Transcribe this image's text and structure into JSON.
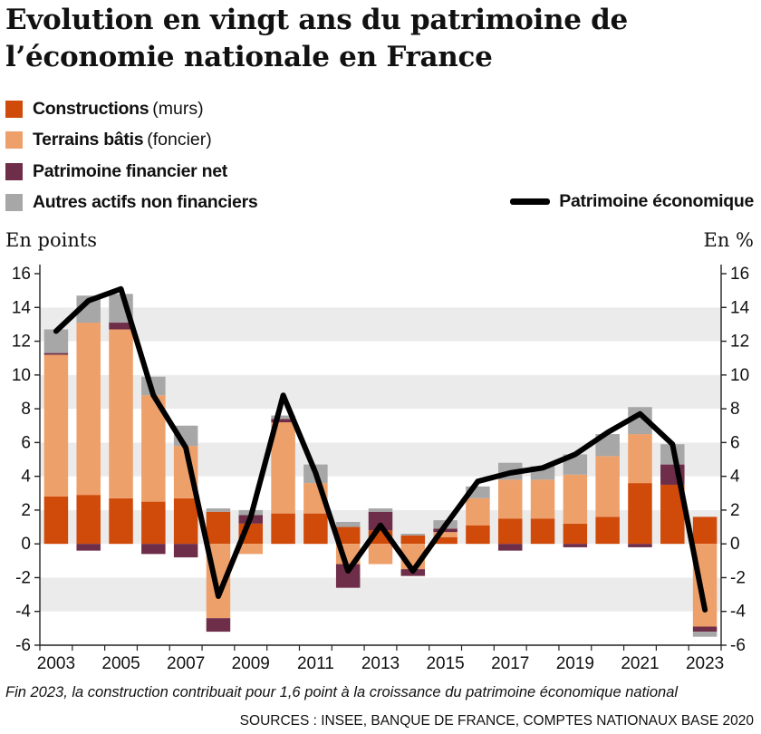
{
  "title": "Evolution en vingt ans du patrimoine de l’économie nationale en France",
  "legend": {
    "items": [
      {
        "label": "Constructions",
        "note": "(murs)",
        "color": "#d04a0a"
      },
      {
        "label": "Terrains bâtis",
        "note": "(foncier)",
        "color": "#eea06a"
      },
      {
        "label": "Patrimoine financier net",
        "note": "",
        "color": "#6e2d48"
      },
      {
        "label": "Autres actifs non financiers",
        "note": "",
        "color": "#a7a7a7"
      }
    ],
    "line_label": "Patrimoine économique"
  },
  "axes": {
    "left_unit": "En points",
    "right_unit": "En %"
  },
  "chart_data": {
    "type": "bar",
    "stacked": true,
    "x": [
      2003,
      2004,
      2005,
      2006,
      2007,
      2008,
      2009,
      2010,
      2011,
      2012,
      2013,
      2014,
      2015,
      2016,
      2017,
      2018,
      2019,
      2020,
      2021,
      2022,
      2023
    ],
    "x_tick_labels": [
      "2003",
      "2005",
      "2007",
      "2009",
      "2011",
      "2013",
      "2015",
      "2017",
      "2019",
      "2021",
      "2023"
    ],
    "series": [
      {
        "name": "Constructions (murs)",
        "color": "#d04a0a",
        "values": [
          2.8,
          2.9,
          2.7,
          2.5,
          2.7,
          1.9,
          1.2,
          1.8,
          1.8,
          1.0,
          0.8,
          0.5,
          0.4,
          1.1,
          1.5,
          1.5,
          1.2,
          1.6,
          3.6,
          3.5,
          1.6
        ]
      },
      {
        "name": "Terrains bâtis (foncier)",
        "color": "#eea06a",
        "values": [
          8.4,
          10.2,
          10.0,
          6.3,
          3.1,
          -4.4,
          -0.6,
          5.4,
          1.8,
          -1.2,
          -1.2,
          -1.5,
          0.3,
          1.6,
          2.3,
          2.3,
          2.9,
          3.6,
          2.9,
          0.0,
          -4.9
        ]
      },
      {
        "name": "Patrimoine financier net",
        "color": "#6e2d48",
        "values": [
          0.1,
          -0.4,
          0.4,
          -0.6,
          -0.8,
          -0.8,
          0.5,
          0.2,
          0.0,
          -1.4,
          1.1,
          -0.4,
          0.2,
          0.0,
          -0.4,
          0.0,
          -0.2,
          0.0,
          -0.2,
          1.2,
          -0.3
        ]
      },
      {
        "name": "Autres actifs non financiers",
        "color": "#a7a7a7",
        "values": [
          1.4,
          1.6,
          1.7,
          1.1,
          1.2,
          0.2,
          0.3,
          0.2,
          1.1,
          0.3,
          0.2,
          0.1,
          0.5,
          0.7,
          1.0,
          0.8,
          1.2,
          1.3,
          1.6,
          1.2,
          -0.3
        ]
      }
    ],
    "line": {
      "name": "Patrimoine économique",
      "values": [
        12.6,
        14.4,
        15.1,
        8.8,
        5.7,
        -3.1,
        1.6,
        8.8,
        4.2,
        -1.6,
        1.1,
        -1.6,
        1.1,
        3.7,
        4.2,
        4.5,
        5.3,
        6.6,
        7.7,
        5.9,
        -3.9
      ]
    },
    "ylim": [
      -6,
      16
    ],
    "yticks": [
      -6,
      -4,
      -2,
      0,
      2,
      4,
      6,
      8,
      10,
      12,
      14,
      16
    ],
    "y2lim": [
      -6,
      16
    ],
    "grid": "alternating horizontal bands"
  },
  "footnote": "Fin 2023, la construction contribuait pour 1,6 point à la croissance du patrimoine économique national",
  "source": "SOURCES : INSEE, BANQUE DE FRANCE, COMPTES NATIONAUX BASE 2020"
}
